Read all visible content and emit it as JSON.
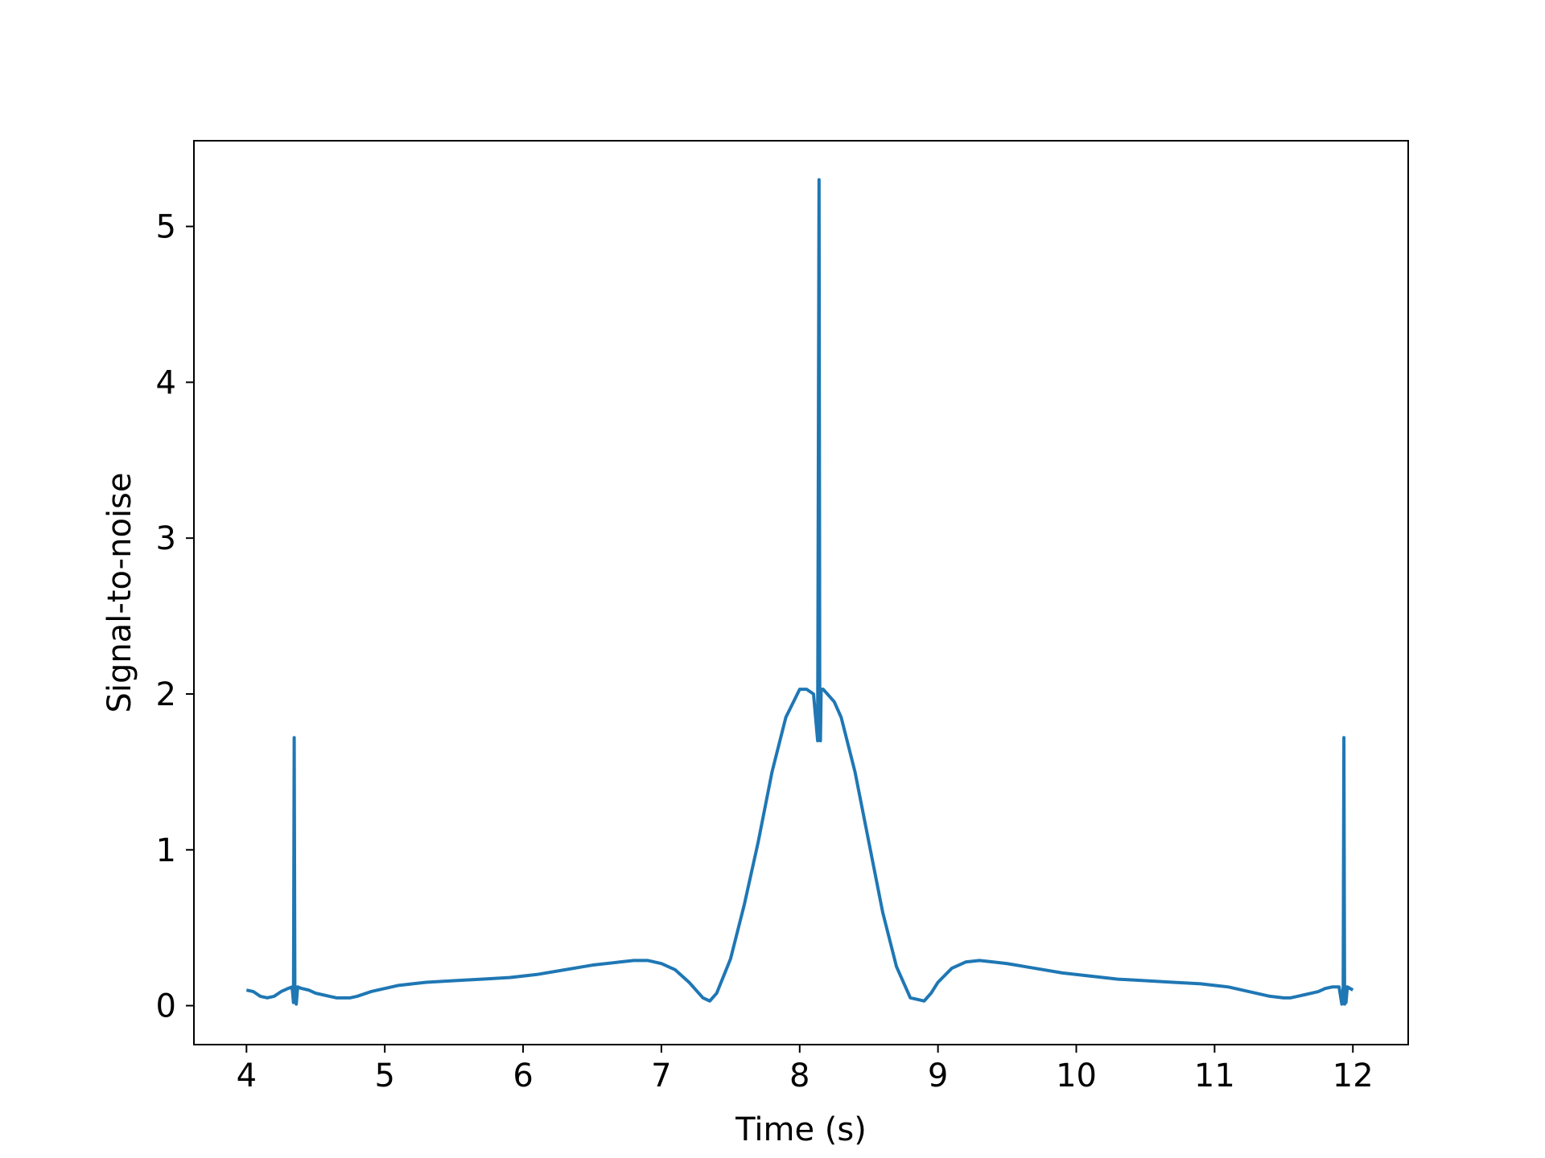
{
  "chart_data": {
    "type": "line",
    "title": "",
    "xlabel": "Time (s)",
    "ylabel": "Signal-to-noise",
    "xlim": [
      3.62,
      12.4
    ],
    "ylim": [
      -0.25,
      5.55
    ],
    "xticks": [
      4,
      5,
      6,
      7,
      8,
      9,
      10,
      11,
      12
    ],
    "xtick_labels": [
      "4",
      "5",
      "6",
      "7",
      "8",
      "9",
      "10",
      "11",
      "12"
    ],
    "yticks": [
      0,
      1,
      2,
      3,
      4,
      5
    ],
    "ytick_labels": [
      "0",
      "1",
      "2",
      "3",
      "4",
      "5"
    ],
    "grid": false,
    "legend": "none",
    "series": [
      {
        "color": "#1f77b4",
        "x": [
          4.0,
          4.05,
          4.1,
          4.15,
          4.2,
          4.25,
          4.3,
          4.33,
          4.34,
          4.345,
          4.35,
          4.355,
          4.36,
          4.37,
          4.4,
          4.45,
          4.5,
          4.55,
          4.6,
          4.65,
          4.7,
          4.75,
          4.8,
          4.9,
          5.0,
          5.1,
          5.2,
          5.3,
          5.5,
          5.7,
          5.9,
          6.1,
          6.3,
          6.5,
          6.7,
          6.8,
          6.9,
          7.0,
          7.1,
          7.2,
          7.3,
          7.35,
          7.4,
          7.5,
          7.6,
          7.7,
          7.8,
          7.9,
          8.0,
          8.05,
          8.1,
          8.13,
          8.14,
          8.145,
          8.15,
          8.155,
          8.16,
          8.17,
          8.2,
          8.25,
          8.3,
          8.4,
          8.5,
          8.6,
          8.7,
          8.8,
          8.9,
          8.95,
          9.0,
          9.1,
          9.2,
          9.3,
          9.4,
          9.5,
          9.7,
          9.9,
          10.1,
          10.3,
          10.5,
          10.7,
          10.9,
          11.0,
          11.1,
          11.2,
          11.3,
          11.4,
          11.5,
          11.55,
          11.6,
          11.65,
          11.7,
          11.75,
          11.8,
          11.85,
          11.9,
          11.92,
          11.93,
          11.935,
          11.94,
          11.945,
          11.95,
          11.96,
          12.0
        ],
        "y": [
          0.1,
          0.09,
          0.06,
          0.05,
          0.06,
          0.09,
          0.11,
          0.12,
          0.02,
          1.72,
          0.03,
          0.12,
          0.01,
          0.12,
          0.11,
          0.1,
          0.08,
          0.07,
          0.06,
          0.05,
          0.05,
          0.05,
          0.06,
          0.09,
          0.11,
          0.13,
          0.14,
          0.15,
          0.16,
          0.17,
          0.18,
          0.2,
          0.23,
          0.26,
          0.28,
          0.29,
          0.29,
          0.27,
          0.23,
          0.15,
          0.05,
          0.03,
          0.08,
          0.3,
          0.65,
          1.05,
          1.5,
          1.85,
          2.03,
          2.03,
          2.0,
          1.7,
          5.3,
          2.02,
          1.7,
          2.02,
          2.03,
          2.03,
          2.0,
          1.95,
          1.85,
          1.5,
          1.05,
          0.6,
          0.25,
          0.05,
          0.03,
          0.08,
          0.15,
          0.24,
          0.28,
          0.29,
          0.28,
          0.27,
          0.24,
          0.21,
          0.19,
          0.17,
          0.16,
          0.15,
          0.14,
          0.13,
          0.12,
          0.1,
          0.08,
          0.06,
          0.05,
          0.05,
          0.06,
          0.07,
          0.08,
          0.09,
          0.11,
          0.12,
          0.12,
          0.01,
          0.12,
          1.72,
          0.01,
          0.12,
          0.02,
          0.12,
          0.1
        ]
      }
    ]
  }
}
